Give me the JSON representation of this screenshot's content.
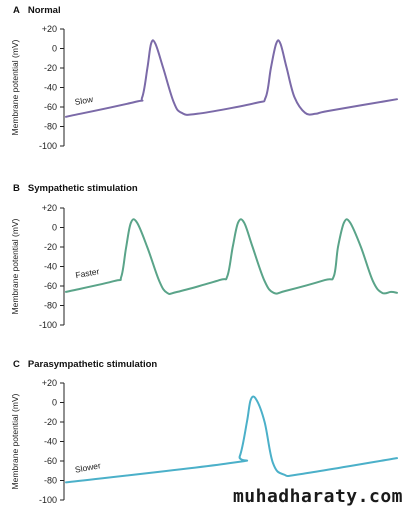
{
  "watermark": "muhadharaty.com",
  "chart_data": [
    {
      "type": "line",
      "title": "Normal",
      "letter": "A",
      "ylabel": "Membrane potential (mV)",
      "ylim": [
        -100,
        20
      ],
      "yticks": [
        "+20",
        "0",
        "-20",
        "-40",
        "-60",
        "-80",
        "-100"
      ],
      "color": "#7b6aa8",
      "annotation": "Slow",
      "annotation_at": [
        0.1,
        -58
      ],
      "series": [
        {
          "x": [
            0,
            1.3,
            1.45,
            1.55,
            1.62,
            1.7,
            1.85,
            2.05,
            2.2,
            2.5,
            3.6,
            3.8,
            3.9,
            4.0,
            4.08,
            4.2,
            4.35,
            4.55,
            4.75,
            5.0,
            6.3
          ],
          "y": [
            -70,
            -55,
            -50,
            -20,
            5,
            5,
            -20,
            -55,
            -66,
            -67,
            -56,
            -50,
            -20,
            5,
            5,
            -20,
            -50,
            -66,
            -67,
            -64,
            -52
          ]
        }
      ]
    },
    {
      "type": "line",
      "title": "Sympathetic stimulation",
      "letter": "B",
      "ylabel": "Membrane potential (mV)",
      "ylim": [
        -100,
        20
      ],
      "yticks": [
        "+20",
        "0",
        "-20",
        "-40",
        "-60",
        "-80",
        "-100"
      ],
      "color": "#5aa489",
      "annotation": "Faster",
      "annotation_at": [
        0.1,
        -52
      ],
      "series": [
        {
          "x": [
            0,
            0.8,
            0.92,
            1.0,
            1.08,
            1.18,
            1.35,
            1.55,
            1.68,
            1.85,
            2.55,
            2.68,
            2.77,
            2.86,
            2.96,
            3.1,
            3.3,
            3.45,
            3.65,
            4.3,
            4.45,
            4.52,
            4.62,
            4.72,
            4.9,
            5.1,
            5.25,
            5.4,
            5.5
          ],
          "y": [
            -66,
            -55,
            -50,
            -20,
            5,
            5,
            -20,
            -55,
            -67,
            -66,
            -54,
            -50,
            -20,
            5,
            5,
            -20,
            -55,
            -67,
            -65,
            -54,
            -50,
            -20,
            5,
            5,
            -20,
            -55,
            -67,
            -66,
            -67
          ]
        }
      ]
    },
    {
      "type": "line",
      "title": "Parasympathetic stimulation",
      "letter": "C",
      "ylabel": "Membrane potential (mV)",
      "ylim": [
        -100,
        20
      ],
      "yticks": [
        "+20",
        "0",
        "-20",
        "-40",
        "-60",
        "-80",
        "-100"
      ],
      "color": "#4bb0c9",
      "annotation": "Slower",
      "annotation_at": [
        0.1,
        -72
      ],
      "series": [
        {
          "x": [
            0,
            3.0,
            3.15,
            3.28,
            3.35,
            3.45,
            3.6,
            3.75,
            3.95,
            4.3,
            6.0
          ],
          "y": [
            -82,
            -62,
            -55,
            -20,
            3,
            3,
            -20,
            -62,
            -74,
            -73,
            -57
          ]
        }
      ]
    }
  ]
}
